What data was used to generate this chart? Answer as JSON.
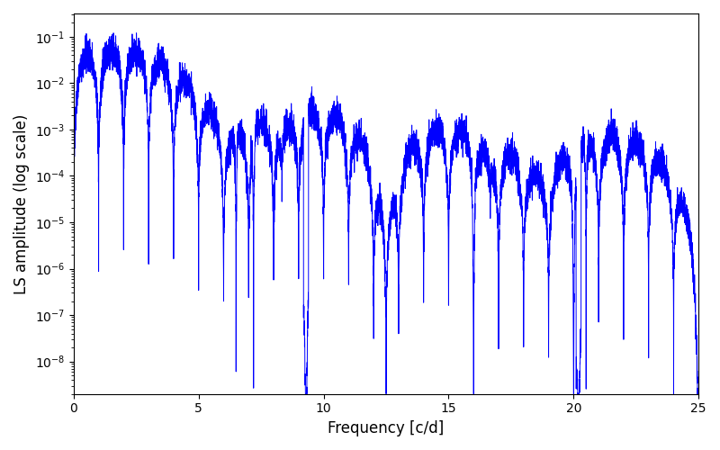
{
  "xlabel": "Frequency [c/d]",
  "ylabel": "LS amplitude (log scale)",
  "line_color": "#0000ff",
  "line_width": 0.7,
  "xlim": [
    0,
    25
  ],
  "ylim_log": [
    -8.7,
    -0.5
  ],
  "yscale": "log",
  "figsize": [
    8.0,
    5.0
  ],
  "dpi": 100,
  "n_points": 8000,
  "seed": 137,
  "background_color": "#ffffff"
}
